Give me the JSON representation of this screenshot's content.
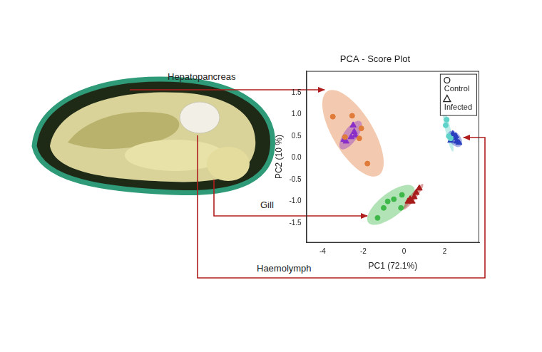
{
  "diagram": {
    "labels": [
      "Hepatopancreas",
      "Gill",
      "Haemolymph"
    ]
  },
  "chart_data": {
    "type": "scatter",
    "title": "PCA - Score Plot",
    "x_label": "PC1 (72.1%)",
    "y_label": "PC2 (10 %)",
    "xlim": [
      -4.8,
      3.7
    ],
    "ylim": [
      -1.95,
      2.0
    ],
    "xticks": [
      -4,
      -2,
      0,
      2
    ],
    "yticks": [
      -1.5,
      {
        "value": -1,
        "label": "-1.0"
      },
      -0.5,
      {
        "value": 0,
        "label": "0.0"
      },
      0.5,
      {
        "value": 1,
        "label": "1.0"
      },
      1.5
    ],
    "grid": false,
    "legend": "top-right",
    "series": [
      {
        "name": "Control",
        "group": "Hepatopancreas",
        "color": "#e07b39",
        "marker": "circle",
        "values": [
          [
            -3.5,
            0.95
          ],
          [
            -2.55,
            0.97
          ],
          [
            -2.1,
            0.68
          ],
          [
            -2.2,
            0.45
          ],
          [
            -2.9,
            0.48
          ],
          [
            -1.8,
            -0.13
          ]
        ]
      },
      {
        "name": "Infected",
        "group": "Hepatopancreas",
        "color": "#8a2fc9",
        "marker": "triangle",
        "values": [
          [
            -2.95,
            0.42
          ],
          [
            -2.5,
            0.75
          ],
          [
            -2.45,
            0.6
          ],
          [
            -2.6,
            0.48
          ],
          [
            -2.85,
            0.38
          ],
          [
            -2.4,
            0.52
          ]
        ]
      },
      {
        "name": "Control",
        "group": "Gill",
        "color": "#3fb84a",
        "marker": "circle",
        "values": [
          [
            -1.3,
            -1.38
          ],
          [
            -1.0,
            -1.15
          ],
          [
            -0.8,
            -1.0
          ],
          [
            -0.5,
            -0.95
          ],
          [
            -0.1,
            -0.85
          ],
          [
            -0.15,
            -1.15
          ]
        ]
      },
      {
        "name": "Infected",
        "group": "Gill",
        "color": "#a81c1c",
        "marker": "triangle",
        "values": [
          [
            0.2,
            -1.0
          ],
          [
            0.3,
            -0.95
          ],
          [
            0.5,
            -0.9
          ],
          [
            0.6,
            -0.8
          ],
          [
            0.75,
            -0.7
          ],
          [
            0.4,
            -1.0
          ]
        ]
      },
      {
        "name": "Control",
        "group": "Haemolymph",
        "color": "#5fd3c9",
        "marker": "circle",
        "values": [
          [
            2.1,
            0.88
          ],
          [
            2.05,
            0.75
          ],
          [
            2.2,
            0.5
          ],
          [
            2.3,
            0.45
          ]
        ]
      },
      {
        "name": "Infected",
        "group": "Haemolymph",
        "color": "#2a3fbf",
        "marker": "triangle",
        "values": [
          [
            2.3,
            0.4
          ],
          [
            2.5,
            0.45
          ],
          [
            2.6,
            0.38
          ],
          [
            2.7,
            0.35
          ],
          [
            2.4,
            0.55
          ],
          [
            2.55,
            0.5
          ]
        ]
      }
    ]
  }
}
